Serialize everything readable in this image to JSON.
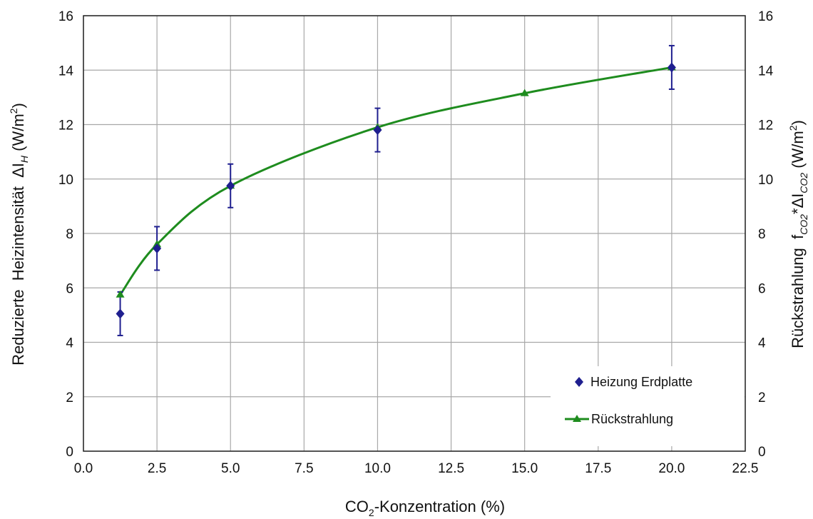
{
  "chart_data": {
    "type": "scatter",
    "xlabel": {
      "pre": "CO",
      "sub": "2",
      "post": "-Konzentration (%)"
    },
    "ylabel_left": {
      "text": "Reduzierte  Heizintensität  ΔI",
      "sub": "H",
      "units": " (W/m",
      "sup": "2",
      "close": ")"
    },
    "ylabel_right": {
      "text": "Rückstrahlung  f",
      "sub1": "CO2",
      "mid": "*ΔI",
      "sub2": "CO2",
      "units": " (W/m",
      "sup": "2",
      "close": ")"
    },
    "xlim": [
      0,
      22.5
    ],
    "ylim": [
      0,
      16
    ],
    "x_ticks": [
      "0.0",
      "2.5",
      "5.0",
      "7.5",
      "10.0",
      "12.5",
      "15.0",
      "17.5",
      "20.0",
      "22.5"
    ],
    "y_ticks": [
      "0",
      "2",
      "4",
      "6",
      "8",
      "10",
      "12",
      "14",
      "16"
    ],
    "grid": true,
    "legend_position": "bottom-right",
    "series": [
      {
        "name": "Heizung Erdplatte",
        "marker": "diamond",
        "color": "#1f1f8f",
        "points": [
          {
            "x": 1.25,
            "y": 5.05,
            "err": 0.8
          },
          {
            "x": 2.5,
            "y": 7.45,
            "err": 0.8
          },
          {
            "x": 5.0,
            "y": 9.75,
            "err": 0.8
          },
          {
            "x": 10.0,
            "y": 11.8,
            "err": 0.8
          },
          {
            "x": 20.0,
            "y": 14.1,
            "err": 0.8
          }
        ]
      },
      {
        "name": "Rückstrahlung",
        "marker": "triangle",
        "color": "#1e8c1e",
        "points": [
          {
            "x": 1.25,
            "y": 5.75
          },
          {
            "x": 2.5,
            "y": 7.6
          },
          {
            "x": 5.0,
            "y": 9.75
          },
          {
            "x": 10.0,
            "y": 11.9
          },
          {
            "x": 15.0,
            "y": 13.15
          },
          {
            "x": 20.0,
            "y": 14.1
          }
        ]
      }
    ]
  }
}
